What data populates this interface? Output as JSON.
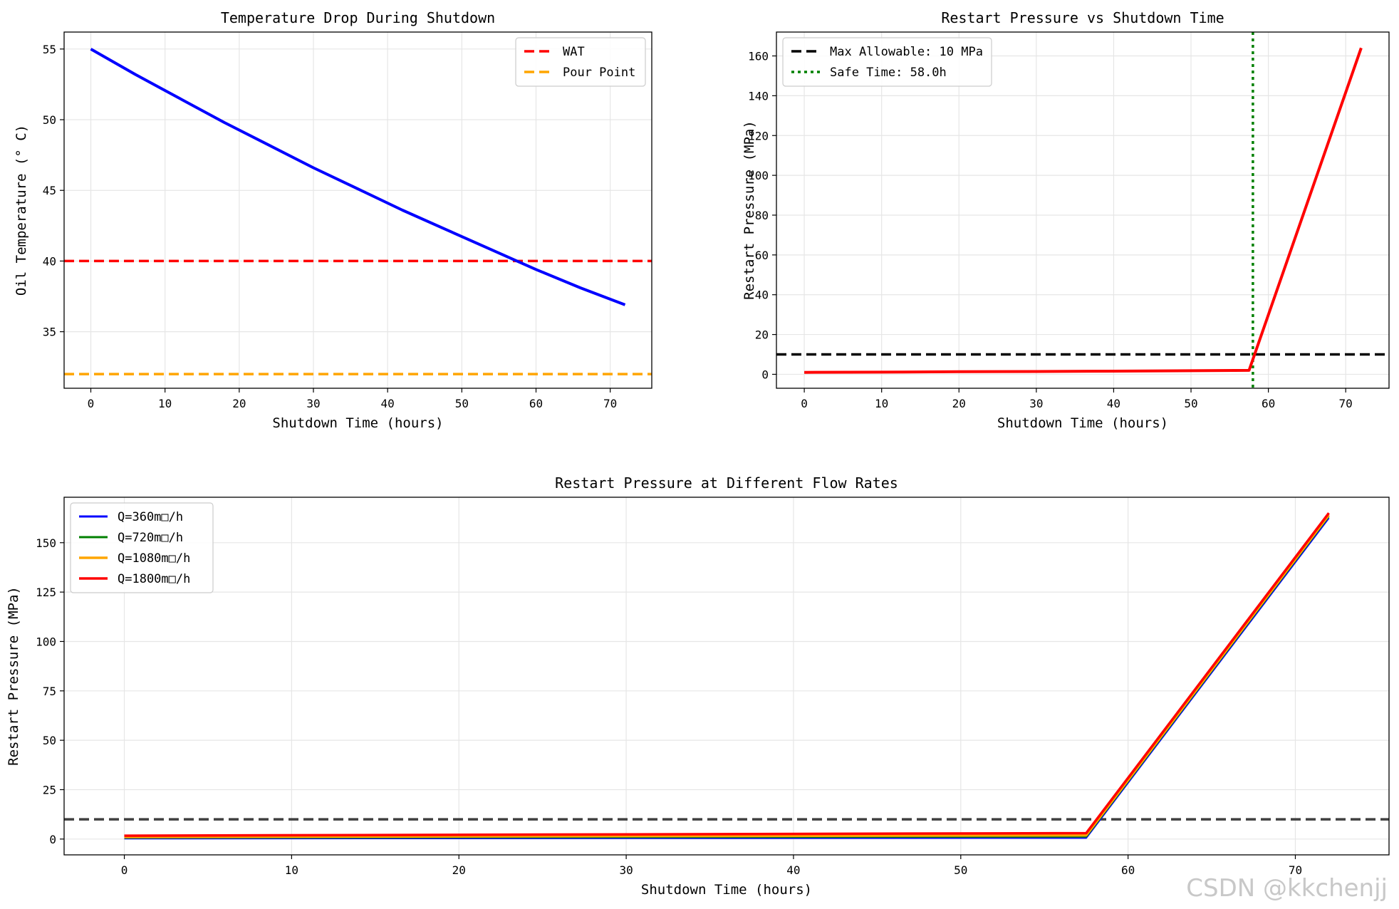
{
  "chart_data": [
    {
      "type": "line",
      "title": "Temperature Drop During Shutdown",
      "xlabel": "Shutdown Time (hours)",
      "ylabel": "Oil Temperature (° C)",
      "xlim": [
        -3.6,
        75.6
      ],
      "ylim": [
        31.0,
        56.2
      ],
      "xticks": [
        0,
        10,
        20,
        30,
        40,
        50,
        60,
        70
      ],
      "yticks": [
        35,
        40,
        45,
        50,
        55
      ],
      "grid": true,
      "legend_position": "top-right",
      "series": [
        {
          "name": "",
          "color": "#0000ff",
          "style": "solid",
          "width": 4,
          "x": [
            0,
            6,
            12,
            18,
            24,
            30,
            36,
            42,
            48,
            54,
            60,
            66,
            72
          ],
          "y": [
            55.0,
            53.2,
            51.5,
            49.8,
            48.2,
            46.6,
            45.1,
            43.6,
            42.2,
            40.8,
            39.4,
            38.1,
            36.9
          ]
        }
      ],
      "hlines": [
        {
          "label": "WAT",
          "y": 40,
          "color": "#ff0000",
          "style": "dashed",
          "width": 3.5
        },
        {
          "label": "Pour Point",
          "y": 32,
          "color": "#ffa500",
          "style": "dashed",
          "width": 3.5
        }
      ]
    },
    {
      "type": "line",
      "title": "Restart Pressure vs Shutdown Time",
      "xlabel": "Shutdown Time (hours)",
      "ylabel": "Restart Pressure (MPa)",
      "xlim": [
        -3.6,
        75.6
      ],
      "ylim": [
        -7,
        172
      ],
      "xticks": [
        0,
        10,
        20,
        30,
        40,
        50,
        60,
        70
      ],
      "yticks": [
        0,
        20,
        40,
        60,
        80,
        100,
        120,
        140,
        160
      ],
      "grid": true,
      "legend_position": "top-left",
      "series": [
        {
          "name": "",
          "color": "#ff0000",
          "style": "solid",
          "width": 4,
          "x": [
            0,
            10,
            20,
            30,
            40,
            50,
            57.5,
            72
          ],
          "y": [
            1.0,
            1.1,
            1.3,
            1.4,
            1.6,
            1.8,
            2.0,
            164
          ]
        }
      ],
      "hlines": [
        {
          "label": "Max Allowable: 10 MPa",
          "y": 10,
          "color": "#000000",
          "style": "dashed",
          "width": 3.5
        }
      ],
      "vlines": [
        {
          "label": "Safe Time: 58.0h",
          "x": 58.0,
          "color": "#008000",
          "style": "dotted",
          "width": 3.5
        }
      ]
    },
    {
      "type": "line",
      "title": "Restart Pressure at Different Flow Rates",
      "xlabel": "Shutdown Time (hours)",
      "ylabel": "Restart Pressure (MPa)",
      "xlim": [
        -3.6,
        75.6
      ],
      "ylim": [
        -8,
        173
      ],
      "xticks": [
        0,
        10,
        20,
        30,
        40,
        50,
        60,
        70
      ],
      "yticks": [
        0,
        25,
        50,
        75,
        100,
        125,
        150
      ],
      "grid": true,
      "legend_position": "top-left",
      "series": [
        {
          "name": "Q=360m□/h",
          "color": "#0000ff",
          "style": "solid",
          "width": 2.5,
          "x": [
            0,
            57.5,
            72
          ],
          "y": [
            0.3,
            0.6,
            162.5
          ]
        },
        {
          "name": "Q=720m□/h",
          "color": "#008000",
          "style": "solid",
          "width": 2.5,
          "x": [
            0,
            57.5,
            72
          ],
          "y": [
            0.6,
            1.2,
            163.3
          ]
        },
        {
          "name": "Q=1080m□/h",
          "color": "#ffa500",
          "style": "solid",
          "width": 3.5,
          "x": [
            0,
            57.5,
            72
          ],
          "y": [
            1.0,
            1.9,
            164.0
          ]
        },
        {
          "name": "Q=1800m□/h",
          "color": "#ff0000",
          "style": "solid",
          "width": 3.5,
          "x": [
            0,
            57.5,
            72
          ],
          "y": [
            1.7,
            3.0,
            165.0
          ]
        }
      ],
      "hlines": [
        {
          "label": "",
          "y": 10,
          "color": "#404040",
          "style": "dashed",
          "width": 3.5
        }
      ]
    }
  ],
  "watermark": "CSDN @kkchenjj"
}
